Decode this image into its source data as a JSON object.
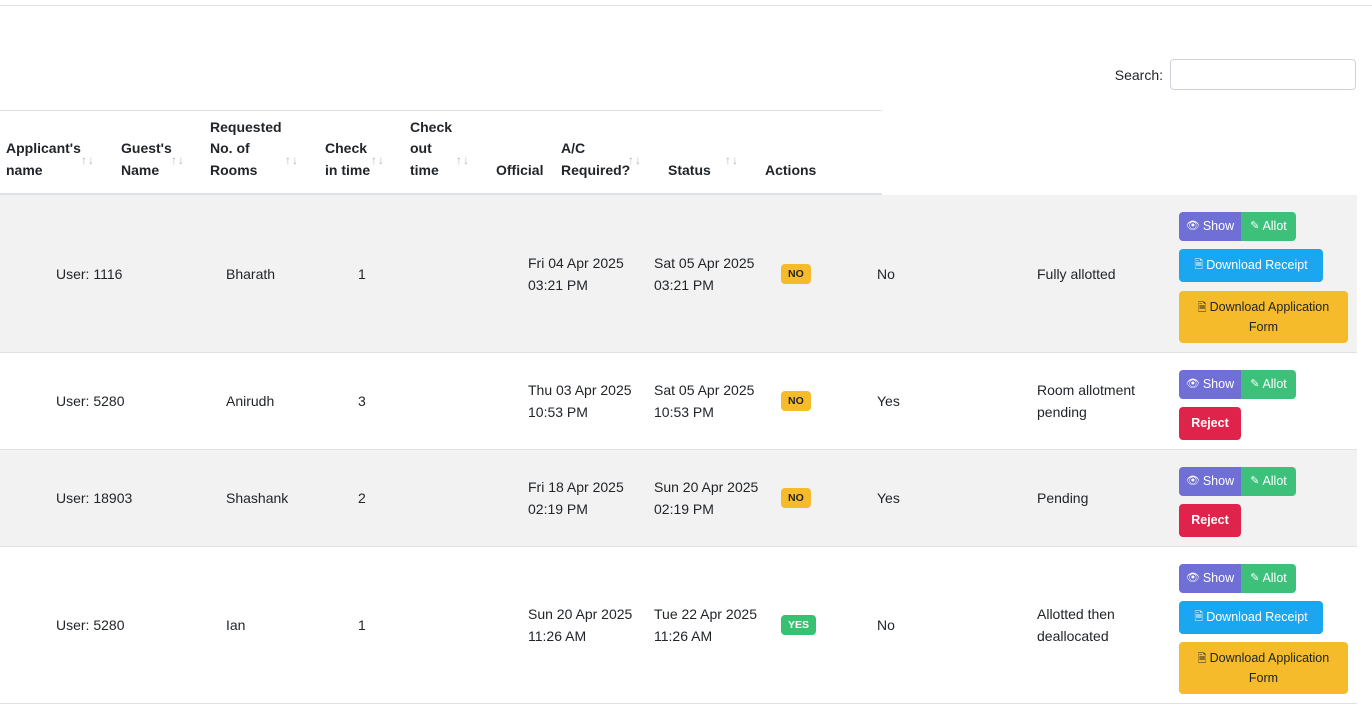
{
  "search": {
    "label": "Search:",
    "placeholder": ""
  },
  "columns": [
    {
      "l1": "Applicant's",
      "l2": "name",
      "l3": ""
    },
    {
      "l1": "Guest's",
      "l2": "Name",
      "l3": ""
    },
    {
      "l1": "Requested",
      "l2": "No. of",
      "l3": "Rooms"
    },
    {
      "l1": "Check",
      "l2": "in time",
      "l3": ""
    },
    {
      "l1": "Check",
      "l2": "out",
      "l3": "time"
    },
    {
      "l1": "Official",
      "l2": "",
      "l3": ""
    },
    {
      "l1": "A/C",
      "l2": "Required?",
      "l3": ""
    },
    {
      "l1": "Status",
      "l2": "",
      "l3": ""
    },
    {
      "l1": "Actions",
      "l2": "",
      "l3": ""
    }
  ],
  "sort_icon": "↑↓",
  "actions": {
    "show": "Show",
    "allot": "Allot",
    "download_receipt": "Download Receipt",
    "download_form_1": "Download Application",
    "download_form_2": "Form",
    "reject": "Reject"
  },
  "icons": {
    "show": "eye-icon",
    "allot": "pencil-icon",
    "receipt": "file-pdf-icon",
    "form": "file-pdf-icon"
  },
  "colors": {
    "no_badge": "#f6bb2a",
    "yes_badge": "#38c172",
    "show": "#6f6fd6",
    "allot": "#3dc07a",
    "receipt": "#1aa7f0",
    "reject": "#e0234b"
  },
  "rows": [
    {
      "applicant": "User: 1116",
      "guest": "Bharath",
      "rooms": "1",
      "checkin_date": "Fri 04 Apr 2025",
      "checkin_time": "03:21 PM",
      "checkout_date": "Sat 05 Apr 2025",
      "checkout_time": "03:21 PM",
      "official": "NO",
      "ac": "No",
      "status_1": "Fully allotted",
      "status_2": ""
    },
    {
      "applicant": "User: 5280",
      "guest": "Anirudh",
      "rooms": "3",
      "checkin_date": "Thu 03 Apr 2025",
      "checkin_time": "10:53 PM",
      "checkout_date": "Sat 05 Apr 2025",
      "checkout_time": "10:53 PM",
      "official": "NO",
      "ac": "Yes",
      "status_1": "Room allotment",
      "status_2": "pending"
    },
    {
      "applicant": "User: 18903",
      "guest": "Shashank",
      "rooms": "2",
      "checkin_date": "Fri 18 Apr 2025",
      "checkin_time": "02:19 PM",
      "checkout_date": "Sun 20 Apr 2025",
      "checkout_time": "02:19 PM",
      "official": "NO",
      "ac": "Yes",
      "status_1": "Pending",
      "status_2": ""
    },
    {
      "applicant": "User: 5280",
      "guest": "Ian",
      "rooms": "1",
      "checkin_date": "Sun 20 Apr 2025",
      "checkin_time": "11:26 AM",
      "checkout_date": "Tue 22 Apr 2025",
      "checkout_time": "11:26 AM",
      "official": "YES",
      "ac": "No",
      "status_1": "Allotted then",
      "status_2": "deallocated"
    }
  ]
}
